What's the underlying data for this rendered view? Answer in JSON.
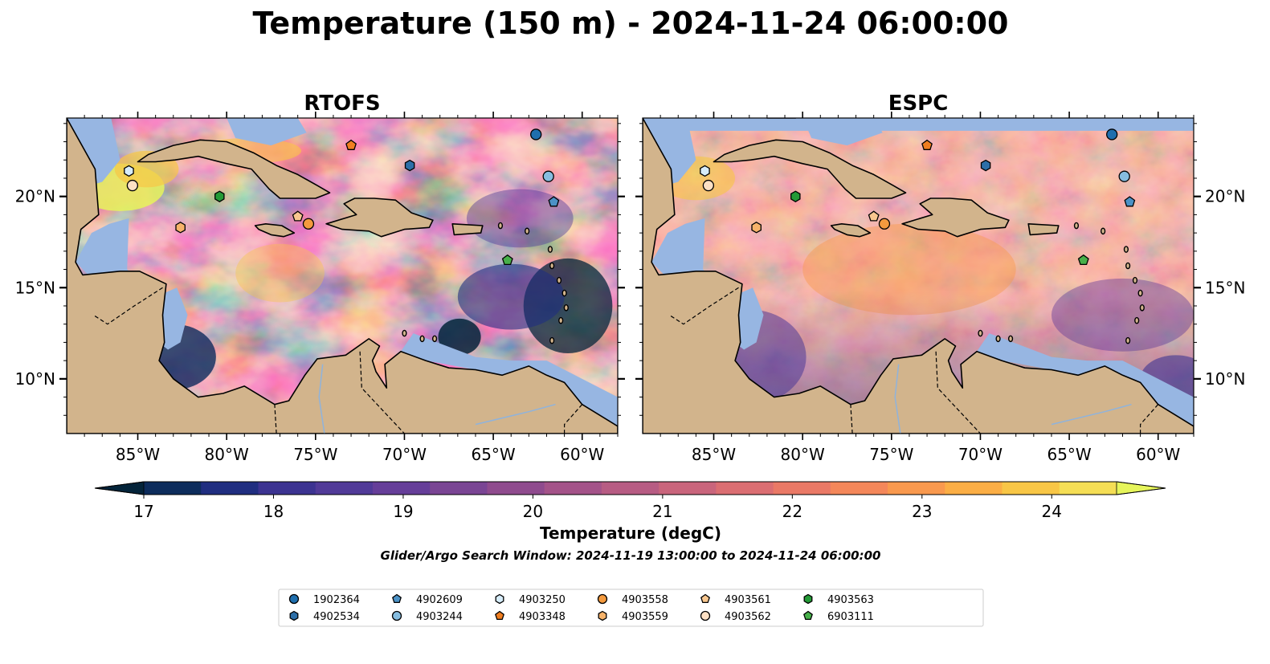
{
  "figure": {
    "title": "Temperature (150 m) - 2024-11-24 06:00:00",
    "panels": [
      {
        "title": "RTOFS",
        "model": "rtofs"
      },
      {
        "title": "ESPC",
        "model": "espc"
      }
    ],
    "lon_ticks": [
      "85°W",
      "80°W",
      "75°W",
      "70°W",
      "65°W",
      "60°W"
    ],
    "lat_ticks": [
      "20°N",
      "15°N",
      "10°N"
    ],
    "colorbar": {
      "label": "Temperature (degC)",
      "tick_labels": [
        "17",
        "18",
        "19",
        "20",
        "21",
        "22",
        "23",
        "24"
      ],
      "range": [
        17,
        24.5
      ],
      "extend": "both",
      "colors": [
        "#04243a",
        "#0d2c5c",
        "#202e80",
        "#3c3391",
        "#513a98",
        "#663e99",
        "#7a4594",
        "#8f4b8e",
        "#a45389",
        "#b75c83",
        "#c9657c",
        "#db6e72",
        "#ea7966",
        "#f4875a",
        "#f9994e",
        "#fbae45",
        "#f8c646",
        "#f5de55",
        "#e6f55b"
      ],
      "under_color": "#04243a",
      "over_color": "#e6f55b"
    },
    "search_window": "Glider/Argo Search Window: 2024-11-19 13:00:00 to 2024-11-24 06:00:00",
    "land_color": "#d2b48c",
    "shelf_color": "#97b6e2",
    "legend": [
      {
        "id": "1902364",
        "marker": "circle",
        "color": "#1f6fae"
      },
      {
        "id": "4902534",
        "marker": "hexagon",
        "color": "#2d6fa8"
      },
      {
        "id": "4902609",
        "marker": "pentagon",
        "color": "#4c92c6"
      },
      {
        "id": "4903244",
        "marker": "circle",
        "color": "#86bde0"
      },
      {
        "id": "4903250",
        "marker": "hexagon",
        "color": "#d6ecfa"
      },
      {
        "id": "4903348",
        "marker": "pentagon",
        "color": "#f07e20"
      },
      {
        "id": "4903558",
        "marker": "circle",
        "color": "#f49a3e"
      },
      {
        "id": "4903559",
        "marker": "hexagon",
        "color": "#f7b36a"
      },
      {
        "id": "4903561",
        "marker": "pentagon",
        "color": "#f9c78f"
      },
      {
        "id": "4903562",
        "marker": "circle",
        "color": "#fde0c4"
      },
      {
        "id": "4903563",
        "marker": "hexagon",
        "color": "#239a36"
      },
      {
        "id": "6903111",
        "marker": "pentagon",
        "color": "#47b04a"
      }
    ],
    "floats": [
      {
        "id": "1902364",
        "lon": -62.6,
        "lat": 23.4
      },
      {
        "id": "4902534",
        "lon": -69.7,
        "lat": 21.7
      },
      {
        "id": "4902609",
        "lon": -61.6,
        "lat": 19.7
      },
      {
        "id": "4903244",
        "lon": -61.9,
        "lat": 21.1
      },
      {
        "id": "4903250",
        "lon": -85.5,
        "lat": 21.4
      },
      {
        "id": "4903348",
        "lon": -73.0,
        "lat": 22.8
      },
      {
        "id": "4903558",
        "lon": -75.4,
        "lat": 18.5
      },
      {
        "id": "4903559",
        "lon": -82.6,
        "lat": 18.3
      },
      {
        "id": "4903561",
        "lon": -76.0,
        "lat": 18.9
      },
      {
        "id": "4903562",
        "lon": -85.3,
        "lat": 20.6
      },
      {
        "id": "4903563",
        "lon": -80.4,
        "lat": 20.0
      },
      {
        "id": "6903111",
        "lon": -64.2,
        "lat": 16.5
      }
    ],
    "extent": {
      "lon": [
        -89.0,
        -58.0
      ],
      "lat": [
        7.0,
        24.3
      ]
    }
  }
}
